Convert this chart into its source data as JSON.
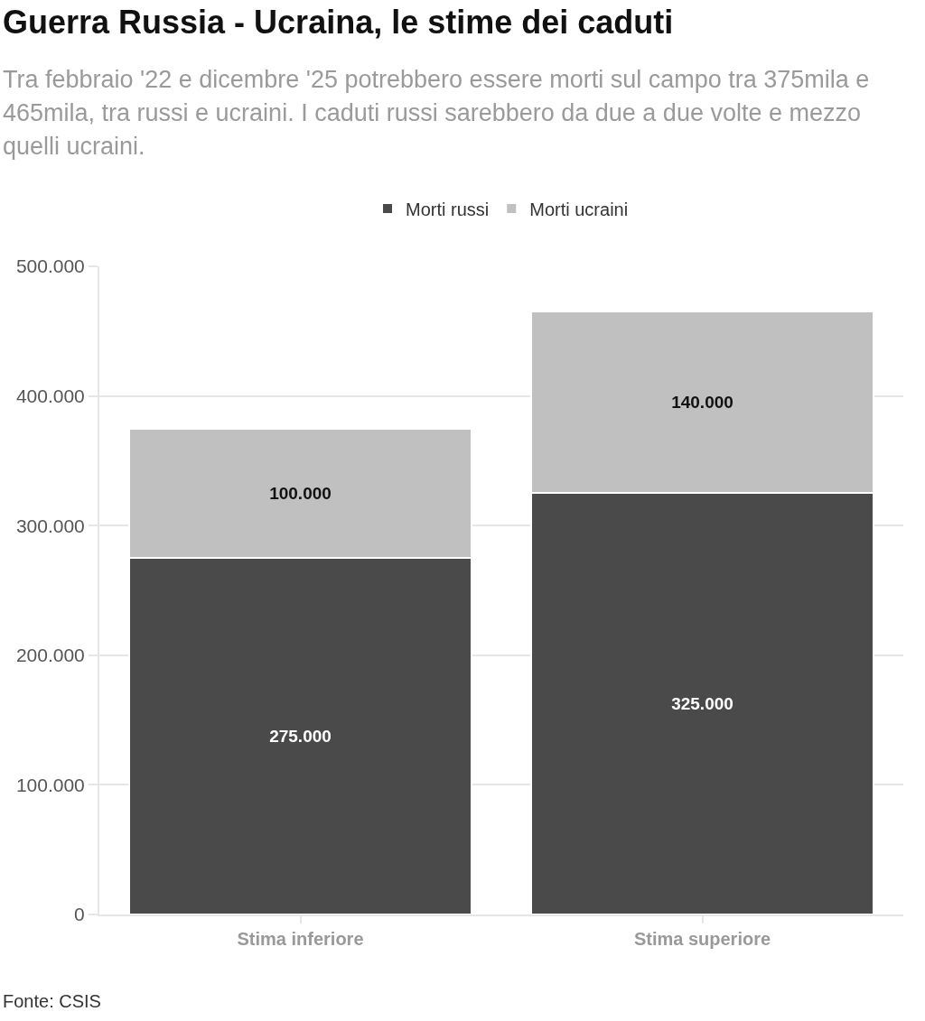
{
  "chart_data": {
    "type": "bar",
    "title": "Guerra Russia - Ucraina, le stime dei caduti",
    "subtitle": "Tra febbraio '22 e dicembre '25 potrebbero essere morti sul campo tra 375mila e 465mila, tra russi e ucraini. I caduti russi sarebbero da due a due volte e mezzo quelli ucraini.",
    "categories": [
      "Stima inferiore",
      "Stima superiore"
    ],
    "series": [
      {
        "name": "Morti russi",
        "color": "#4a4a4a",
        "values": [
          275000,
          325000
        ],
        "value_labels": [
          "275.000",
          "325.000"
        ]
      },
      {
        "name": "Morti ucraini",
        "color": "#c0c0c0",
        "values": [
          100000,
          140000
        ],
        "value_labels": [
          "100.000",
          "140.000"
        ]
      }
    ],
    "stacked": true,
    "ylim": [
      0,
      500000
    ],
    "yticks": [
      0,
      {
        "value": 100000,
        "label": "100.000"
      },
      {
        "value": 200000,
        "label": "200.000"
      },
      {
        "value": 300000,
        "label": "300.000"
      },
      {
        "value": 400000,
        "label": "400.000"
      },
      {
        "value": 500000,
        "label": "500.000"
      }
    ],
    "grid": "y",
    "legend": "top",
    "annotations": [
      "Fonte: CSIS"
    ]
  }
}
